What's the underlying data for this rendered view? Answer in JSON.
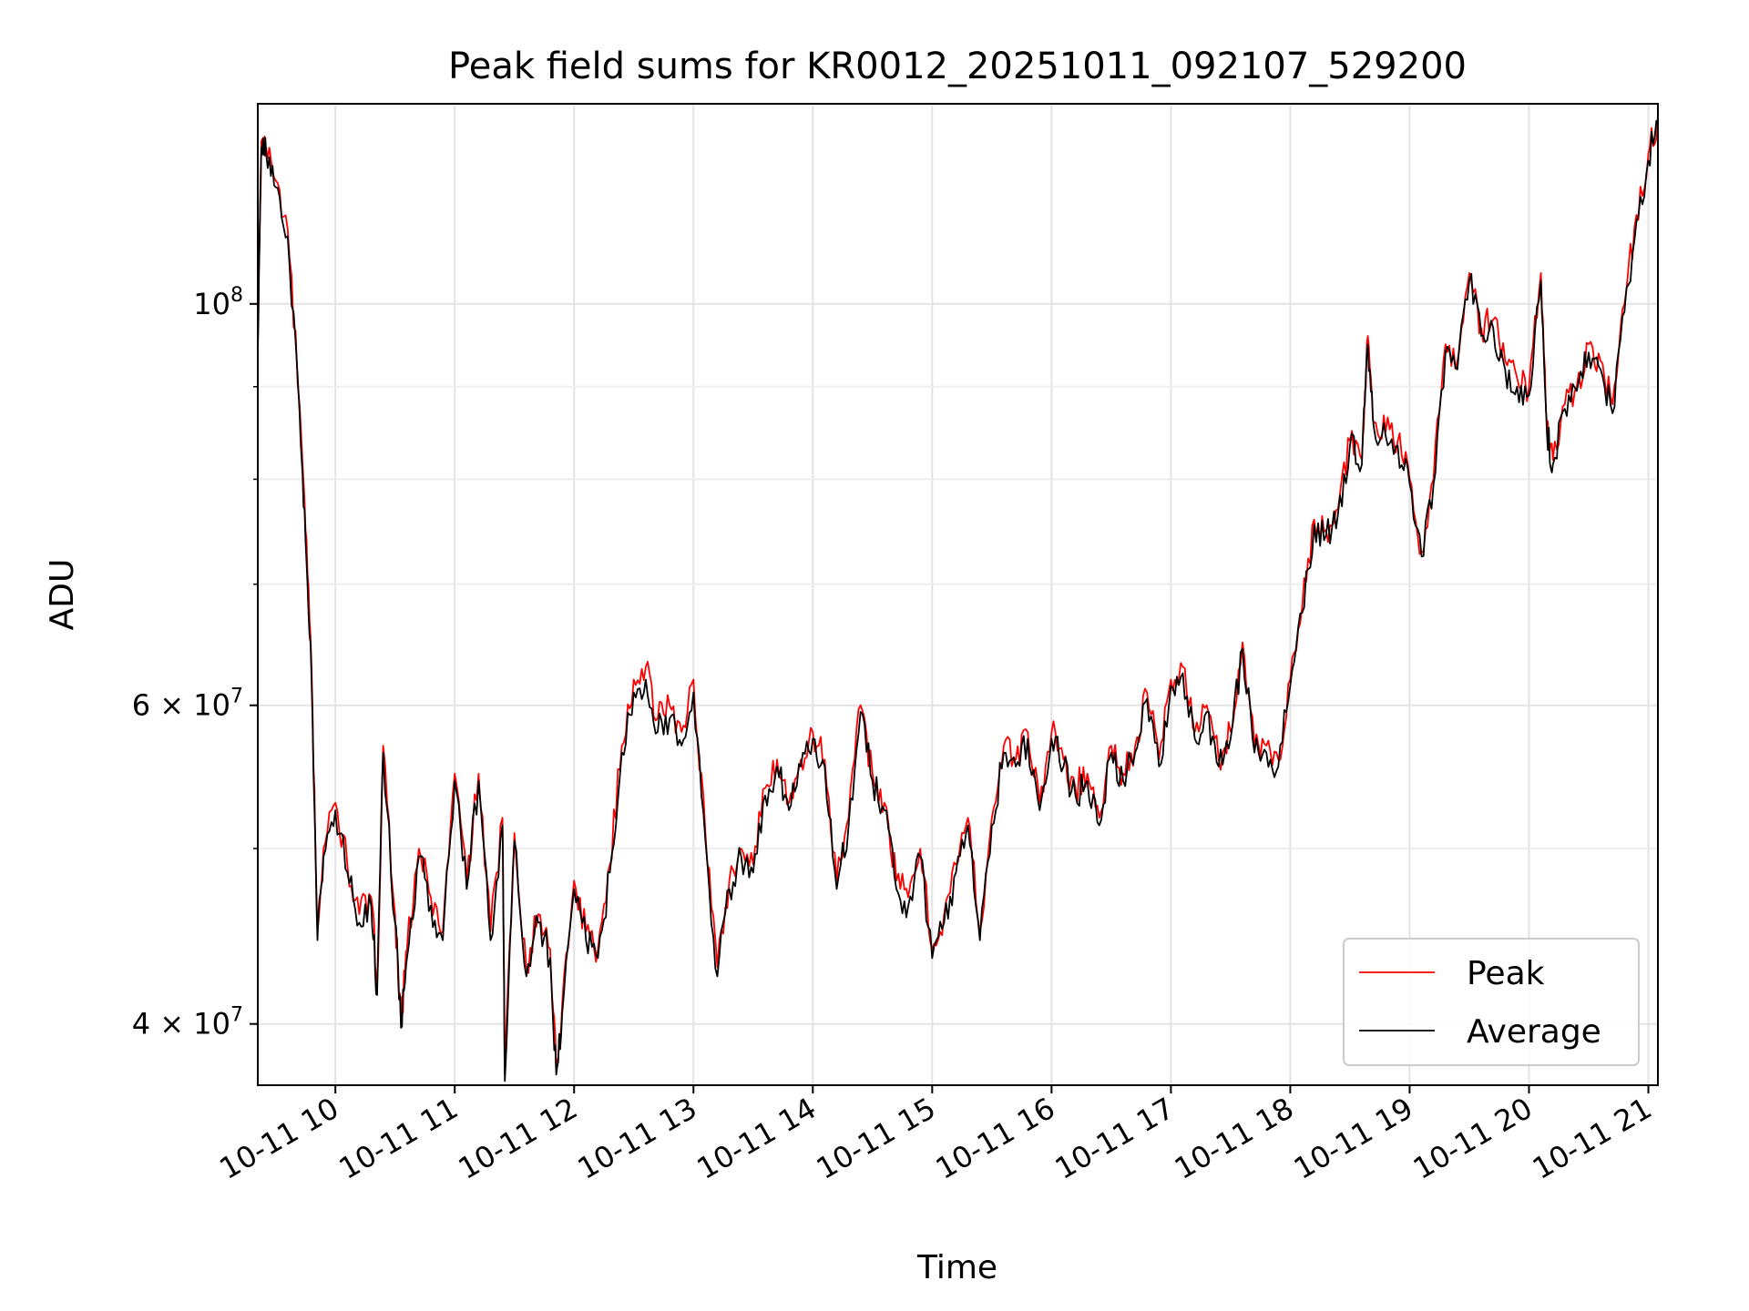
{
  "chart_data": {
    "type": "line",
    "title": "Peak field sums for KR0012_20251011_092107_529200",
    "xlabel": "Time",
    "ylabel": "ADU",
    "yscale": "log",
    "ylim": [
      37000000,
      129000000
    ],
    "xlim": [
      9.35,
      21.08
    ],
    "grid": true,
    "legend_position": "bottom-right",
    "x_ticks": [
      {
        "value": 10,
        "label": "10-11 10"
      },
      {
        "value": 11,
        "label": "10-11 11"
      },
      {
        "value": 12,
        "label": "10-11 12"
      },
      {
        "value": 13,
        "label": "10-11 13"
      },
      {
        "value": 14,
        "label": "10-11 14"
      },
      {
        "value": 15,
        "label": "10-11 15"
      },
      {
        "value": 16,
        "label": "10-11 16"
      },
      {
        "value": 17,
        "label": "10-11 17"
      },
      {
        "value": 18,
        "label": "10-11 18"
      },
      {
        "value": 19,
        "label": "10-11 19"
      },
      {
        "value": 20,
        "label": "10-11 20"
      },
      {
        "value": 21,
        "label": "10-11 21"
      }
    ],
    "y_ticks": [
      {
        "value": 100000000,
        "base": "10",
        "exp": "8"
      },
      {
        "value": 60000000,
        "base": "6 × 10",
        "exp": "7"
      },
      {
        "value": 40000000,
        "base": "4 × 10",
        "exp": "7"
      }
    ],
    "y_minor_gridlines": [
      50000000,
      70000000,
      80000000,
      90000000
    ],
    "series": [
      {
        "name": "Peak",
        "color": "#ff0000",
        "anchors": [
          [
            9.35,
            95000000
          ],
          [
            9.38,
            123000000
          ],
          [
            9.42,
            122000000
          ],
          [
            9.5,
            117000000
          ],
          [
            9.6,
            110000000
          ],
          [
            9.7,
            88000000
          ],
          [
            9.75,
            75000000
          ],
          [
            9.8,
            63000000
          ],
          [
            9.85,
            45000000
          ],
          [
            9.9,
            50000000
          ],
          [
            10.0,
            53000000
          ],
          [
            10.1,
            49000000
          ],
          [
            10.2,
            46000000
          ],
          [
            10.3,
            47000000
          ],
          [
            10.35,
            42000000
          ],
          [
            10.4,
            57000000
          ],
          [
            10.5,
            46000000
          ],
          [
            10.55,
            40000000
          ],
          [
            10.6,
            44000000
          ],
          [
            10.7,
            50000000
          ],
          [
            10.8,
            47000000
          ],
          [
            10.9,
            45000000
          ],
          [
            11.0,
            55000000
          ],
          [
            11.1,
            48000000
          ],
          [
            11.2,
            55000000
          ],
          [
            11.3,
            45000000
          ],
          [
            11.4,
            52000000
          ],
          [
            11.42,
            37500000
          ],
          [
            11.5,
            51000000
          ],
          [
            11.6,
            43000000
          ],
          [
            11.7,
            46000000
          ],
          [
            11.8,
            44000000
          ],
          [
            11.85,
            38000000
          ],
          [
            11.9,
            41000000
          ],
          [
            12.0,
            48000000
          ],
          [
            12.1,
            45000000
          ],
          [
            12.2,
            44000000
          ],
          [
            12.3,
            49000000
          ],
          [
            12.4,
            57000000
          ],
          [
            12.5,
            62000000
          ],
          [
            12.6,
            63000000
          ],
          [
            12.7,
            59000000
          ],
          [
            12.8,
            60000000
          ],
          [
            12.9,
            58000000
          ],
          [
            13.0,
            62000000
          ],
          [
            13.1,
            51000000
          ],
          [
            13.2,
            43000000
          ],
          [
            13.3,
            48000000
          ],
          [
            13.4,
            50000000
          ],
          [
            13.5,
            49000000
          ],
          [
            13.6,
            54000000
          ],
          [
            13.7,
            56000000
          ],
          [
            13.8,
            53000000
          ],
          [
            13.9,
            56000000
          ],
          [
            14.0,
            58000000
          ],
          [
            14.1,
            56000000
          ],
          [
            14.2,
            48000000
          ],
          [
            14.3,
            52000000
          ],
          [
            14.4,
            60000000
          ],
          [
            14.5,
            55000000
          ],
          [
            14.6,
            53000000
          ],
          [
            14.7,
            48000000
          ],
          [
            14.8,
            47000000
          ],
          [
            14.9,
            50000000
          ],
          [
            15.0,
            44000000
          ],
          [
            15.1,
            46000000
          ],
          [
            15.2,
            49000000
          ],
          [
            15.3,
            52000000
          ],
          [
            15.4,
            45000000
          ],
          [
            15.5,
            52000000
          ],
          [
            15.6,
            57000000
          ],
          [
            15.7,
            56000000
          ],
          [
            15.8,
            58000000
          ],
          [
            15.9,
            53000000
          ],
          [
            16.0,
            58000000
          ],
          [
            16.1,
            56000000
          ],
          [
            16.2,
            54000000
          ],
          [
            16.3,
            55000000
          ],
          [
            16.4,
            52000000
          ],
          [
            16.5,
            57000000
          ],
          [
            16.6,
            55000000
          ],
          [
            16.7,
            57000000
          ],
          [
            16.8,
            61000000
          ],
          [
            16.9,
            56000000
          ],
          [
            17.0,
            62000000
          ],
          [
            17.1,
            63000000
          ],
          [
            17.2,
            58000000
          ],
          [
            17.3,
            60000000
          ],
          [
            17.4,
            56000000
          ],
          [
            17.5,
            58000000
          ],
          [
            17.6,
            65000000
          ],
          [
            17.7,
            57000000
          ],
          [
            17.8,
            57000000
          ],
          [
            17.9,
            56000000
          ],
          [
            18.0,
            62000000
          ],
          [
            18.1,
            68000000
          ],
          [
            18.2,
            76000000
          ],
          [
            18.3,
            75000000
          ],
          [
            18.4,
            77000000
          ],
          [
            18.5,
            84000000
          ],
          [
            18.6,
            82000000
          ],
          [
            18.65,
            96000000
          ],
          [
            18.7,
            86000000
          ],
          [
            18.8,
            85000000
          ],
          [
            18.9,
            84000000
          ],
          [
            19.0,
            80000000
          ],
          [
            19.1,
            73000000
          ],
          [
            19.2,
            80000000
          ],
          [
            19.3,
            95000000
          ],
          [
            19.4,
            93000000
          ],
          [
            19.5,
            104000000
          ],
          [
            19.6,
            97000000
          ],
          [
            19.7,
            98000000
          ],
          [
            19.8,
            93000000
          ],
          [
            19.9,
            91000000
          ],
          [
            20.0,
            90000000
          ],
          [
            20.1,
            104000000
          ],
          [
            20.15,
            86000000
          ],
          [
            20.2,
            82000000
          ],
          [
            20.3,
            88000000
          ],
          [
            20.4,
            90000000
          ],
          [
            20.5,
            95000000
          ],
          [
            20.6,
            93000000
          ],
          [
            20.7,
            88000000
          ],
          [
            20.8,
            100000000
          ],
          [
            20.9,
            112000000
          ],
          [
            21.0,
            121000000
          ],
          [
            21.08,
            127000000
          ]
        ]
      },
      {
        "name": "Average",
        "color": "#000000",
        "anchors": [
          [
            9.35,
            94000000
          ],
          [
            9.38,
            122000000
          ],
          [
            9.42,
            121000000
          ],
          [
            9.5,
            116000000
          ],
          [
            9.6,
            109000000
          ],
          [
            9.7,
            87000000
          ],
          [
            9.75,
            74000000
          ],
          [
            9.8,
            62000000
          ],
          [
            9.85,
            44500000
          ],
          [
            9.9,
            49500000
          ],
          [
            10.0,
            52500000
          ],
          [
            10.1,
            48500000
          ],
          [
            10.2,
            45500000
          ],
          [
            10.3,
            46500000
          ],
          [
            10.35,
            41500000
          ],
          [
            10.4,
            56500000
          ],
          [
            10.5,
            45500000
          ],
          [
            10.55,
            39800000
          ],
          [
            10.6,
            43500000
          ],
          [
            10.7,
            49500000
          ],
          [
            10.8,
            46500000
          ],
          [
            10.9,
            44500000
          ],
          [
            11.0,
            54500000
          ],
          [
            11.1,
            47500000
          ],
          [
            11.2,
            54500000
          ],
          [
            11.3,
            44500000
          ],
          [
            11.4,
            51500000
          ],
          [
            11.42,
            37200000
          ],
          [
            11.5,
            50500000
          ],
          [
            11.6,
            42500000
          ],
          [
            11.7,
            45500000
          ],
          [
            11.8,
            43500000
          ],
          [
            11.85,
            37500000
          ],
          [
            11.9,
            40500000
          ],
          [
            12.0,
            47500000
          ],
          [
            12.1,
            44500000
          ],
          [
            12.2,
            43500000
          ],
          [
            12.3,
            48500000
          ],
          [
            12.4,
            56500000
          ],
          [
            12.5,
            61000000
          ],
          [
            12.6,
            62000000
          ],
          [
            12.7,
            58000000
          ],
          [
            12.8,
            59000000
          ],
          [
            12.9,
            57000000
          ],
          [
            13.0,
            61000000
          ],
          [
            13.1,
            50500000
          ],
          [
            13.2,
            42500000
          ],
          [
            13.3,
            47500000
          ],
          [
            13.4,
            49500000
          ],
          [
            13.5,
            48500000
          ],
          [
            13.6,
            53500000
          ],
          [
            13.7,
            55500000
          ],
          [
            13.8,
            52500000
          ],
          [
            13.9,
            55500000
          ],
          [
            14.0,
            57500000
          ],
          [
            14.1,
            55500000
          ],
          [
            14.2,
            47500000
          ],
          [
            14.3,
            51500000
          ],
          [
            14.4,
            59500000
          ],
          [
            14.5,
            54500000
          ],
          [
            14.6,
            52500000
          ],
          [
            14.7,
            47500000
          ],
          [
            14.8,
            46500000
          ],
          [
            14.9,
            49500000
          ],
          [
            15.0,
            43500000
          ],
          [
            15.1,
            45500000
          ],
          [
            15.2,
            48500000
          ],
          [
            15.3,
            51500000
          ],
          [
            15.4,
            44500000
          ],
          [
            15.5,
            51500000
          ],
          [
            15.6,
            56500000
          ],
          [
            15.7,
            55500000
          ],
          [
            15.8,
            57500000
          ],
          [
            15.9,
            52500000
          ],
          [
            16.0,
            57500000
          ],
          [
            16.1,
            55500000
          ],
          [
            16.2,
            53500000
          ],
          [
            16.3,
            54500000
          ],
          [
            16.4,
            51500000
          ],
          [
            16.5,
            56500000
          ],
          [
            16.6,
            54500000
          ],
          [
            16.7,
            56500000
          ],
          [
            16.8,
            60500000
          ],
          [
            16.9,
            55500000
          ],
          [
            17.0,
            61500000
          ],
          [
            17.1,
            62500000
          ],
          [
            17.2,
            57500000
          ],
          [
            17.3,
            59500000
          ],
          [
            17.4,
            55500000
          ],
          [
            17.5,
            57500000
          ],
          [
            17.6,
            64500000
          ],
          [
            17.7,
            56500000
          ],
          [
            17.8,
            56500000
          ],
          [
            17.9,
            55500000
          ],
          [
            18.0,
            61500000
          ],
          [
            18.1,
            67500000
          ],
          [
            18.2,
            75500000
          ],
          [
            18.3,
            74500000
          ],
          [
            18.4,
            76500000
          ],
          [
            18.5,
            83500000
          ],
          [
            18.6,
            81500000
          ],
          [
            18.65,
            95000000
          ],
          [
            18.7,
            85500000
          ],
          [
            18.8,
            84500000
          ],
          [
            18.9,
            83500000
          ],
          [
            19.0,
            79500000
          ],
          [
            19.1,
            72500000
          ],
          [
            19.2,
            79500000
          ],
          [
            19.3,
            94000000
          ],
          [
            19.4,
            92000000
          ],
          [
            19.5,
            103000000
          ],
          [
            19.6,
            96000000
          ],
          [
            19.7,
            97000000
          ],
          [
            19.8,
            92000000
          ],
          [
            19.9,
            90000000
          ],
          [
            20.0,
            89000000
          ],
          [
            20.1,
            103000000
          ],
          [
            20.15,
            85000000
          ],
          [
            20.2,
            81500000
          ],
          [
            20.3,
            87500000
          ],
          [
            20.4,
            89500000
          ],
          [
            20.5,
            94000000
          ],
          [
            20.6,
            92000000
          ],
          [
            20.7,
            87000000
          ],
          [
            20.8,
            99000000
          ],
          [
            20.9,
            111000000
          ],
          [
            21.0,
            120000000
          ],
          [
            21.08,
            126000000
          ]
        ]
      }
    ]
  }
}
